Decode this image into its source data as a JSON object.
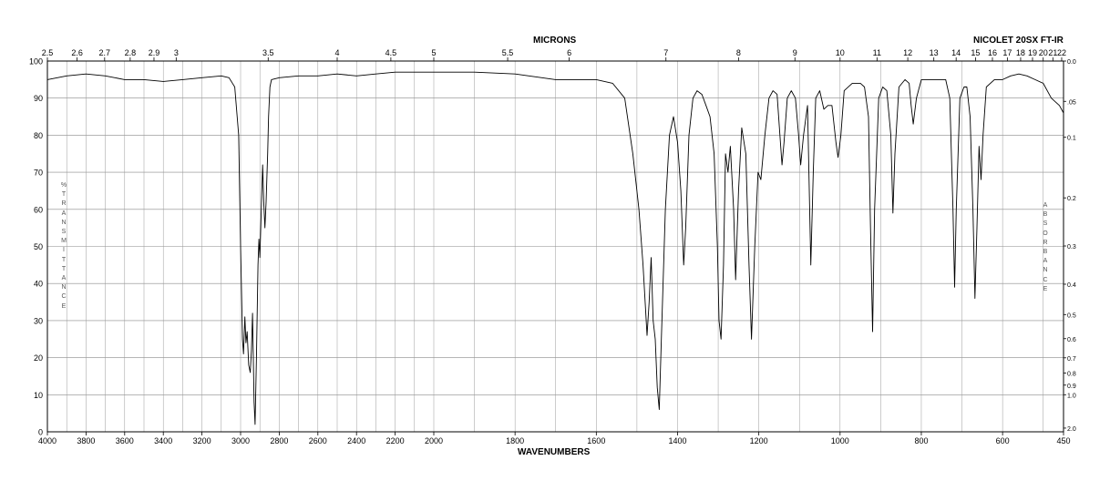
{
  "header": {
    "top_axis_title": "MICRONS",
    "instrument": "NICOLET 20SX FT-IR",
    "bottom_axis_title": "WAVENUMBERS",
    "left_axis_title": "%TRANSMITTANCE",
    "right_axis_title": "ABSORBANCE"
  },
  "chart_data": {
    "type": "line",
    "title": "",
    "xlabel": "WAVENUMBERS",
    "ylabel": "%TRANSMITTANCE",
    "x_range": [
      4000,
      450
    ],
    "y_range": [
      0,
      100
    ],
    "grid": true,
    "scale_note": "x-axis is split: 4000-2000 cm-1 at half the scale of 2000-450 cm-1",
    "bottom_ticks": [
      "4000",
      "3800",
      "3600",
      "3400",
      "3200",
      "3000",
      "2800",
      "2600",
      "2400",
      "2200",
      "2000",
      "1800",
      "1600",
      "1400",
      "1200",
      "1000",
      "800",
      "600",
      "450"
    ],
    "left_ticks": [
      "0",
      "10",
      "20",
      "30",
      "40",
      "50",
      "60",
      "70",
      "80",
      "90",
      "100"
    ],
    "top_ticks": [
      "2.5",
      "2.6",
      "2.7",
      "2.8",
      "2.9",
      "3",
      "3.5",
      "4",
      "4.5",
      "5",
      "5.5",
      "6",
      "7",
      "8",
      "9",
      "10",
      "11",
      "12",
      "13",
      "14",
      "15",
      "16",
      "17",
      "18",
      "19",
      "20",
      "21",
      "22"
    ],
    "right_ticks": [
      {
        "label": "0.0",
        "value": 0.0
      },
      {
        "label": ".05",
        "value": 0.05
      },
      {
        "label": "0.1",
        "value": 0.1
      },
      {
        "label": "0.2",
        "value": 0.2
      },
      {
        "label": "0.3",
        "value": 0.3
      },
      {
        "label": "0.4",
        "value": 0.4
      },
      {
        "label": "0.5",
        "value": 0.5
      },
      {
        "label": "0.6",
        "value": 0.6
      },
      {
        "label": "0.7",
        "value": 0.7
      },
      {
        "label": "0.8",
        "value": 0.8
      },
      {
        "label": "0.9",
        "value": 0.9
      },
      {
        "label": "1.0",
        "value": 1.0
      },
      {
        "label": "2.0",
        "value": 2.0
      }
    ],
    "series": [
      {
        "values": [
          [
            4000,
            95
          ],
          [
            3900,
            96
          ],
          [
            3800,
            96.5
          ],
          [
            3700,
            96
          ],
          [
            3600,
            95
          ],
          [
            3500,
            95
          ],
          [
            3400,
            94.5
          ],
          [
            3300,
            95
          ],
          [
            3200,
            95.5
          ],
          [
            3100,
            96
          ],
          [
            3060,
            95.5
          ],
          [
            3030,
            93
          ],
          [
            3010,
            80
          ],
          [
            3000,
            50
          ],
          [
            2990,
            25
          ],
          [
            2985,
            21
          ],
          [
            2978,
            31
          ],
          [
            2972,
            24
          ],
          [
            2966,
            27
          ],
          [
            2958,
            18
          ],
          [
            2950,
            16
          ],
          [
            2944,
            22
          ],
          [
            2938,
            32
          ],
          [
            2930,
            8
          ],
          [
            2925,
            2
          ],
          [
            2918,
            20
          ],
          [
            2910,
            45
          ],
          [
            2905,
            52
          ],
          [
            2900,
            47
          ],
          [
            2893,
            60
          ],
          [
            2886,
            72
          ],
          [
            2880,
            62
          ],
          [
            2874,
            55
          ],
          [
            2868,
            62
          ],
          [
            2860,
            75
          ],
          [
            2855,
            85
          ],
          [
            2848,
            93
          ],
          [
            2840,
            95
          ],
          [
            2800,
            95.5
          ],
          [
            2700,
            96
          ],
          [
            2600,
            96
          ],
          [
            2500,
            96.5
          ],
          [
            2400,
            96
          ],
          [
            2300,
            96.5
          ],
          [
            2200,
            97
          ],
          [
            2100,
            97
          ],
          [
            2000,
            97
          ],
          [
            1900,
            97
          ],
          [
            1800,
            96.5
          ],
          [
            1700,
            95
          ],
          [
            1650,
            95
          ],
          [
            1600,
            95
          ],
          [
            1560,
            94
          ],
          [
            1530,
            90
          ],
          [
            1510,
            75
          ],
          [
            1495,
            60
          ],
          [
            1485,
            45
          ],
          [
            1475,
            26
          ],
          [
            1470,
            35
          ],
          [
            1465,
            47
          ],
          [
            1460,
            30
          ],
          [
            1455,
            25
          ],
          [
            1450,
            12
          ],
          [
            1445,
            6
          ],
          [
            1440,
            25
          ],
          [
            1430,
            60
          ],
          [
            1420,
            80
          ],
          [
            1410,
            85
          ],
          [
            1400,
            78
          ],
          [
            1392,
            65
          ],
          [
            1385,
            45
          ],
          [
            1380,
            55
          ],
          [
            1372,
            80
          ],
          [
            1362,
            90
          ],
          [
            1352,
            92
          ],
          [
            1340,
            91
          ],
          [
            1330,
            88
          ],
          [
            1320,
            85
          ],
          [
            1310,
            75
          ],
          [
            1302,
            50
          ],
          [
            1298,
            30
          ],
          [
            1293,
            25
          ],
          [
            1287,
            45
          ],
          [
            1282,
            75
          ],
          [
            1276,
            70
          ],
          [
            1270,
            77
          ],
          [
            1262,
            60
          ],
          [
            1257,
            41
          ],
          [
            1250,
            65
          ],
          [
            1242,
            82
          ],
          [
            1232,
            75
          ],
          [
            1224,
            45
          ],
          [
            1218,
            25
          ],
          [
            1210,
            50
          ],
          [
            1202,
            70
          ],
          [
            1195,
            68
          ],
          [
            1185,
            80
          ],
          [
            1175,
            90
          ],
          [
            1165,
            92
          ],
          [
            1155,
            91
          ],
          [
            1148,
            80
          ],
          [
            1143,
            72
          ],
          [
            1138,
            78
          ],
          [
            1130,
            90
          ],
          [
            1120,
            92
          ],
          [
            1110,
            90
          ],
          [
            1102,
            80
          ],
          [
            1097,
            72
          ],
          [
            1090,
            80
          ],
          [
            1080,
            88
          ],
          [
            1072,
            45
          ],
          [
            1066,
            70
          ],
          [
            1060,
            90
          ],
          [
            1050,
            92
          ],
          [
            1040,
            87
          ],
          [
            1030,
            88
          ],
          [
            1020,
            88
          ],
          [
            1010,
            78
          ],
          [
            1005,
            74
          ],
          [
            998,
            80
          ],
          [
            990,
            92
          ],
          [
            970,
            94
          ],
          [
            950,
            94
          ],
          [
            940,
            93
          ],
          [
            930,
            85
          ],
          [
            925,
            55
          ],
          [
            920,
            27
          ],
          [
            915,
            60
          ],
          [
            905,
            90
          ],
          [
            895,
            93
          ],
          [
            885,
            92
          ],
          [
            875,
            80
          ],
          [
            870,
            59
          ],
          [
            865,
            75
          ],
          [
            855,
            93
          ],
          [
            840,
            95
          ],
          [
            830,
            94
          ],
          [
            825,
            88
          ],
          [
            820,
            83
          ],
          [
            812,
            90
          ],
          [
            800,
            95
          ],
          [
            760,
            95
          ],
          [
            740,
            95
          ],
          [
            730,
            90
          ],
          [
            722,
            60
          ],
          [
            718,
            39
          ],
          [
            714,
            60
          ],
          [
            705,
            90
          ],
          [
            695,
            93
          ],
          [
            688,
            93
          ],
          [
            680,
            85
          ],
          [
            673,
            60
          ],
          [
            668,
            36
          ],
          [
            663,
            55
          ],
          [
            658,
            77
          ],
          [
            653,
            68
          ],
          [
            648,
            80
          ],
          [
            640,
            93
          ],
          [
            620,
            95
          ],
          [
            610,
            95
          ],
          [
            600,
            95
          ],
          [
            580,
            96
          ],
          [
            560,
            96.5
          ],
          [
            540,
            96
          ],
          [
            520,
            95
          ],
          [
            500,
            94
          ],
          [
            480,
            90
          ],
          [
            470,
            89
          ],
          [
            460,
            88
          ],
          [
            450,
            86
          ]
        ]
      }
    ]
  }
}
